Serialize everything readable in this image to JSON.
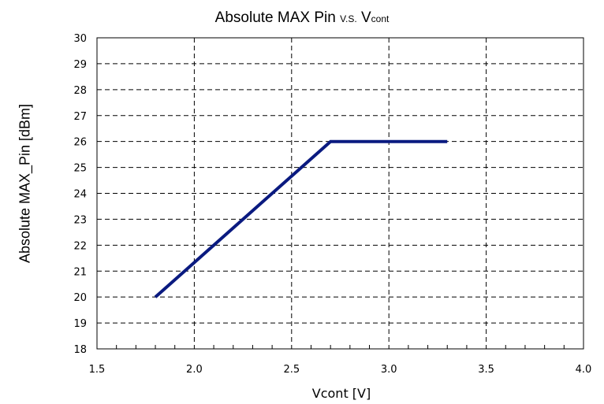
{
  "chart_data": {
    "type": "line",
    "title": {
      "main": "Absolute MAX  Pin",
      "vs": "V.S.",
      "v": "V",
      "cont": "cont"
    },
    "xlabel": "Vcont [V]",
    "ylabel": "Absolute MAX_Pin [dBm]",
    "xlim": [
      1.5,
      4.0
    ],
    "ylim": [
      18,
      30
    ],
    "xticks": [
      "1.5",
      "2.0",
      "2.5",
      "3.0",
      "3.5",
      "4.0"
    ],
    "yticks": [
      "18",
      "19",
      "20",
      "21",
      "22",
      "23",
      "24",
      "25",
      "26",
      "27",
      "28",
      "29",
      "30"
    ],
    "grid": true,
    "series": [
      {
        "color": "#0a1a80",
        "x": [
          1.8,
          2.7,
          3.3
        ],
        "y": [
          20,
          26,
          26
        ]
      }
    ]
  }
}
